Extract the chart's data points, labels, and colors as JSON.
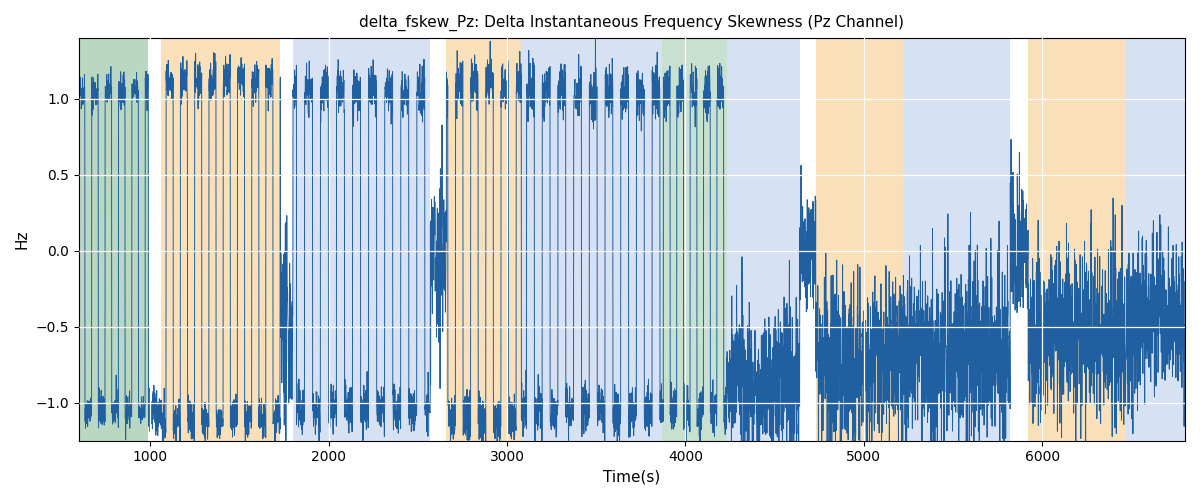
{
  "title": "delta_fskew_Pz: Delta Instantaneous Frequency Skewness (Pz Channel)",
  "xlabel": "Time(s)",
  "ylabel": "Hz",
  "xlim": [
    600,
    6800
  ],
  "ylim": [
    -1.25,
    1.4
  ],
  "line_color": "#2060a0",
  "line_width": 0.7,
  "background_bands": [
    {
      "xmin": 600,
      "xmax": 990,
      "color": "#aec6e8",
      "alpha": 0.5
    },
    {
      "xmin": 600,
      "xmax": 990,
      "color": "#90c878",
      "alpha": 0.4
    },
    {
      "xmin": 1060,
      "xmax": 1730,
      "color": "#f5c880",
      "alpha": 0.55
    },
    {
      "xmin": 1800,
      "xmax": 2570,
      "color": "#aec6e8",
      "alpha": 0.5
    },
    {
      "xmin": 2660,
      "xmax": 3080,
      "color": "#f5c880",
      "alpha": 0.55
    },
    {
      "xmin": 3080,
      "xmax": 3870,
      "color": "#aec6e8",
      "alpha": 0.5
    },
    {
      "xmin": 3870,
      "xmax": 4230,
      "color": "#90c878",
      "alpha": 0.4
    },
    {
      "xmin": 3870,
      "xmax": 4230,
      "color": "#aec6e8",
      "alpha": 0.25
    },
    {
      "xmin": 4230,
      "xmax": 4640,
      "color": "#aec6e8",
      "alpha": 0.5
    },
    {
      "xmin": 4730,
      "xmax": 5220,
      "color": "#f5c880",
      "alpha": 0.55
    },
    {
      "xmin": 5220,
      "xmax": 5820,
      "color": "#aec6e8",
      "alpha": 0.5
    },
    {
      "xmin": 5920,
      "xmax": 6470,
      "color": "#f5c880",
      "alpha": 0.55
    },
    {
      "xmin": 6470,
      "xmax": 6800,
      "color": "#aec6e8",
      "alpha": 0.5
    }
  ],
  "seed": 42,
  "n_points": 6200,
  "t_start": 600,
  "t_end": 6800
}
